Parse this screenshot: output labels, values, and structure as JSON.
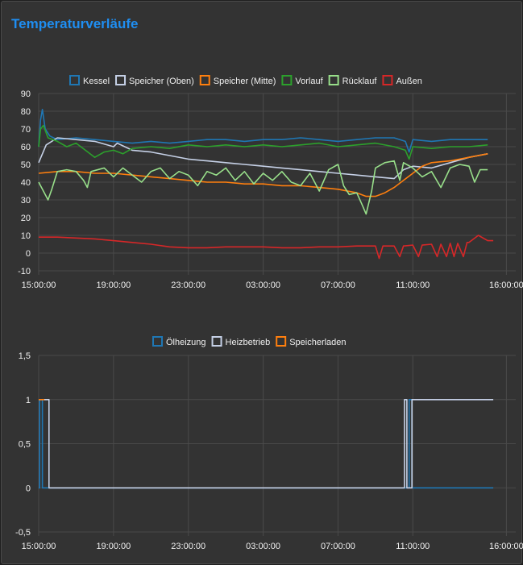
{
  "title": "Temperaturverläufe",
  "chart_data": [
    {
      "type": "line",
      "title": "",
      "xlabel": "",
      "ylabel": "",
      "x_ticks": [
        "15:00:00",
        "19:00:00",
        "23:00:00",
        "03:00:00",
        "07:00:00",
        "11:00:00",
        "16:00:00"
      ],
      "x_tick_hours": [
        0,
        4,
        8,
        12,
        16,
        20,
        25
      ],
      "xlim_hours": [
        0,
        25.5
      ],
      "ylim": [
        -10,
        90
      ],
      "y_ticks": [
        -10,
        0,
        10,
        20,
        30,
        40,
        50,
        60,
        70,
        80,
        90
      ],
      "grid": true,
      "legend_position": "top",
      "series": [
        {
          "name": "Kessel",
          "color": "#1f77b4",
          "points": [
            [
              0,
              60
            ],
            [
              0.1,
              75
            ],
            [
              0.2,
              81
            ],
            [
              0.35,
              70
            ],
            [
              0.6,
              66
            ],
            [
              1,
              64
            ],
            [
              2,
              65
            ],
            [
              3,
              64
            ],
            [
              4,
              63
            ],
            [
              5,
              62
            ],
            [
              6,
              63
            ],
            [
              7,
              62
            ],
            [
              8,
              63
            ],
            [
              9,
              64
            ],
            [
              10,
              64
            ],
            [
              11,
              63
            ],
            [
              12,
              64
            ],
            [
              13,
              64
            ],
            [
              14,
              65
            ],
            [
              15,
              64
            ],
            [
              16,
              63
            ],
            [
              17,
              64
            ],
            [
              18,
              65
            ],
            [
              19,
              65
            ],
            [
              19.6,
              63
            ],
            [
              19.8,
              57
            ],
            [
              20,
              64
            ],
            [
              21,
              63
            ],
            [
              22,
              64
            ],
            [
              23,
              64
            ],
            [
              24,
              64
            ]
          ]
        },
        {
          "name": "Speicher (Oben)",
          "color": "#c5d0e6",
          "points": [
            [
              0,
              51
            ],
            [
              0.4,
              61
            ],
            [
              1,
              65
            ],
            [
              2,
              64
            ],
            [
              3,
              63
            ],
            [
              4,
              60
            ],
            [
              4.2,
              62
            ],
            [
              5,
              58
            ],
            [
              6,
              57
            ],
            [
              7,
              55
            ],
            [
              8,
              53
            ],
            [
              9,
              52
            ],
            [
              10,
              51
            ],
            [
              11,
              50
            ],
            [
              12,
              49
            ],
            [
              13,
              48
            ],
            [
              14,
              47
            ],
            [
              15,
              46
            ],
            [
              16,
              45
            ],
            [
              17,
              44
            ],
            [
              18,
              43
            ],
            [
              19,
              42
            ],
            [
              19.5,
              47
            ],
            [
              20,
              49
            ],
            [
              21,
              48
            ],
            [
              22,
              51
            ],
            [
              23,
              54
            ],
            [
              24,
              56
            ]
          ]
        },
        {
          "name": "Speicher (Mitte)",
          "color": "#ff7f0e",
          "points": [
            [
              0,
              45
            ],
            [
              1,
              46
            ],
            [
              2,
              46
            ],
            [
              3,
              45
            ],
            [
              4,
              45
            ],
            [
              5,
              44
            ],
            [
              6,
              43
            ],
            [
              7,
              42
            ],
            [
              8,
              41
            ],
            [
              9,
              40
            ],
            [
              10,
              40
            ],
            [
              11,
              39
            ],
            [
              12,
              39
            ],
            [
              13,
              38
            ],
            [
              14,
              38
            ],
            [
              15,
              37
            ],
            [
              16,
              36
            ],
            [
              17,
              34
            ],
            [
              17.5,
              32
            ],
            [
              18,
              32
            ],
            [
              18.5,
              34
            ],
            [
              19,
              37
            ],
            [
              19.5,
              41
            ],
            [
              20,
              45
            ],
            [
              20.5,
              49
            ],
            [
              21,
              51
            ],
            [
              22,
              52
            ],
            [
              23,
              54
            ],
            [
              24,
              56
            ]
          ]
        },
        {
          "name": "Vorlauf",
          "color": "#2ca02c",
          "points": [
            [
              0,
              60
            ],
            [
              0.1,
              70
            ],
            [
              0.25,
              72
            ],
            [
              0.5,
              65
            ],
            [
              1,
              63
            ],
            [
              1.5,
              60
            ],
            [
              2,
              62
            ],
            [
              2.5,
              58
            ],
            [
              3,
              54
            ],
            [
              3.5,
              57
            ],
            [
              4,
              58
            ],
            [
              4.5,
              56
            ],
            [
              5,
              59
            ],
            [
              6,
              60
            ],
            [
              7,
              59
            ],
            [
              8,
              61
            ],
            [
              9,
              60
            ],
            [
              10,
              61
            ],
            [
              11,
              60
            ],
            [
              12,
              61
            ],
            [
              13,
              60
            ],
            [
              14,
              61
            ],
            [
              15,
              62
            ],
            [
              16,
              60
            ],
            [
              17,
              61
            ],
            [
              18,
              62
            ],
            [
              19,
              60
            ],
            [
              19.6,
              58
            ],
            [
              19.8,
              53
            ],
            [
              20,
              60
            ],
            [
              21,
              59
            ],
            [
              22,
              60
            ],
            [
              23,
              60
            ],
            [
              24,
              61
            ]
          ]
        },
        {
          "name": "Rücklauf",
          "color": "#98df8a",
          "points": [
            [
              0,
              40
            ],
            [
              0.3,
              34
            ],
            [
              0.5,
              30
            ],
            [
              0.7,
              36
            ],
            [
              1,
              46
            ],
            [
              1.5,
              47
            ],
            [
              2,
              46
            ],
            [
              2.4,
              41
            ],
            [
              2.6,
              37
            ],
            [
              2.8,
              46
            ],
            [
              3.5,
              48
            ],
            [
              4,
              43
            ],
            [
              4.5,
              48
            ],
            [
              5,
              44
            ],
            [
              5.5,
              40
            ],
            [
              6,
              46
            ],
            [
              6.5,
              48
            ],
            [
              7,
              42
            ],
            [
              7.5,
              46
            ],
            [
              8,
              44
            ],
            [
              8.5,
              38
            ],
            [
              9,
              46
            ],
            [
              9.5,
              44
            ],
            [
              10,
              48
            ],
            [
              10.5,
              41
            ],
            [
              11,
              46
            ],
            [
              11.5,
              39
            ],
            [
              12,
              45
            ],
            [
              12.5,
              41
            ],
            [
              13,
              46
            ],
            [
              13.5,
              40
            ],
            [
              14,
              38
            ],
            [
              14.5,
              45
            ],
            [
              15,
              35
            ],
            [
              15.5,
              47
            ],
            [
              16,
              50
            ],
            [
              16.3,
              38
            ],
            [
              16.6,
              33
            ],
            [
              17,
              34
            ],
            [
              17.3,
              27
            ],
            [
              17.5,
              22
            ],
            [
              17.8,
              35
            ],
            [
              18,
              48
            ],
            [
              18.5,
              51
            ],
            [
              19,
              52
            ],
            [
              19.3,
              41
            ],
            [
              19.5,
              51
            ],
            [
              20,
              48
            ],
            [
              20.5,
              43
            ],
            [
              21,
              46
            ],
            [
              21.5,
              37
            ],
            [
              22,
              48
            ],
            [
              22.5,
              50
            ],
            [
              23,
              49
            ],
            [
              23.3,
              40
            ],
            [
              23.6,
              47
            ],
            [
              24,
              47
            ]
          ]
        },
        {
          "name": "Außen",
          "color": "#d62728",
          "points": [
            [
              0,
              9
            ],
            [
              1,
              9
            ],
            [
              2,
              8.5
            ],
            [
              3,
              8
            ],
            [
              4,
              7
            ],
            [
              5,
              6
            ],
            [
              6,
              5
            ],
            [
              7,
              3.5
            ],
            [
              8,
              3
            ],
            [
              9,
              3
            ],
            [
              10,
              3.5
            ],
            [
              11,
              3.5
            ],
            [
              12,
              3.5
            ],
            [
              13,
              3
            ],
            [
              14,
              3
            ],
            [
              15,
              3.5
            ],
            [
              16,
              3.5
            ],
            [
              17,
              4
            ],
            [
              18,
              4
            ],
            [
              18.2,
              -3
            ],
            [
              18.4,
              4
            ],
            [
              19,
              4
            ],
            [
              19.3,
              -2
            ],
            [
              19.5,
              4
            ],
            [
              20,
              4.5
            ],
            [
              20.3,
              -2
            ],
            [
              20.5,
              4.5
            ],
            [
              21,
              5
            ],
            [
              21.3,
              -2
            ],
            [
              21.5,
              5
            ],
            [
              21.8,
              -2
            ],
            [
              22,
              5.5
            ],
            [
              22.2,
              -2
            ],
            [
              22.4,
              5.5
            ],
            [
              22.7,
              -2
            ],
            [
              22.9,
              6
            ],
            [
              23,
              6
            ],
            [
              23.5,
              10
            ],
            [
              24,
              7
            ],
            [
              24.3,
              7
            ]
          ]
        }
      ]
    },
    {
      "type": "line",
      "title": "",
      "xlabel": "",
      "ylabel": "",
      "x_ticks": [
        "15:00:00",
        "19:00:00",
        "23:00:00",
        "03:00:00",
        "07:00:00",
        "11:00:00",
        "16:00:00"
      ],
      "x_tick_hours": [
        0,
        4,
        8,
        12,
        16,
        20,
        25
      ],
      "xlim_hours": [
        0,
        25.5
      ],
      "ylim": [
        -0.5,
        1.5
      ],
      "y_ticks": [
        -0.5,
        0,
        0.5,
        1,
        1.5
      ],
      "y_tick_labels": [
        "-0,5",
        "0",
        "0,5",
        "1",
        "1,5"
      ],
      "grid": true,
      "legend_position": "top",
      "series": [
        {
          "name": "Ölheizung",
          "color": "#1f77b4",
          "points": [
            [
              0,
              0
            ],
            [
              0.05,
              0
            ],
            [
              0.05,
              1
            ],
            [
              0.2,
              1
            ],
            [
              0.2,
              0
            ],
            [
              19.8,
              0
            ],
            [
              19.8,
              1
            ],
            [
              19.95,
              1
            ],
            [
              19.95,
              0
            ],
            [
              24.3,
              0
            ]
          ]
        },
        {
          "name": "Heizbetrieb",
          "color": "#c5d0e6",
          "points": [
            [
              0,
              1
            ],
            [
              0.55,
              1
            ],
            [
              0.55,
              0
            ],
            [
              19.55,
              0
            ],
            [
              19.55,
              1
            ],
            [
              19.68,
              1
            ],
            [
              19.68,
              0
            ],
            [
              19.95,
              0
            ],
            [
              19.95,
              1
            ],
            [
              24.3,
              1
            ]
          ]
        },
        {
          "name": "Speicherladen",
          "color": "#ff7f0e",
          "points": [
            [
              0,
              1
            ],
            [
              0.3,
              1
            ],
            [
              0.3,
              1
            ]
          ]
        }
      ]
    }
  ]
}
